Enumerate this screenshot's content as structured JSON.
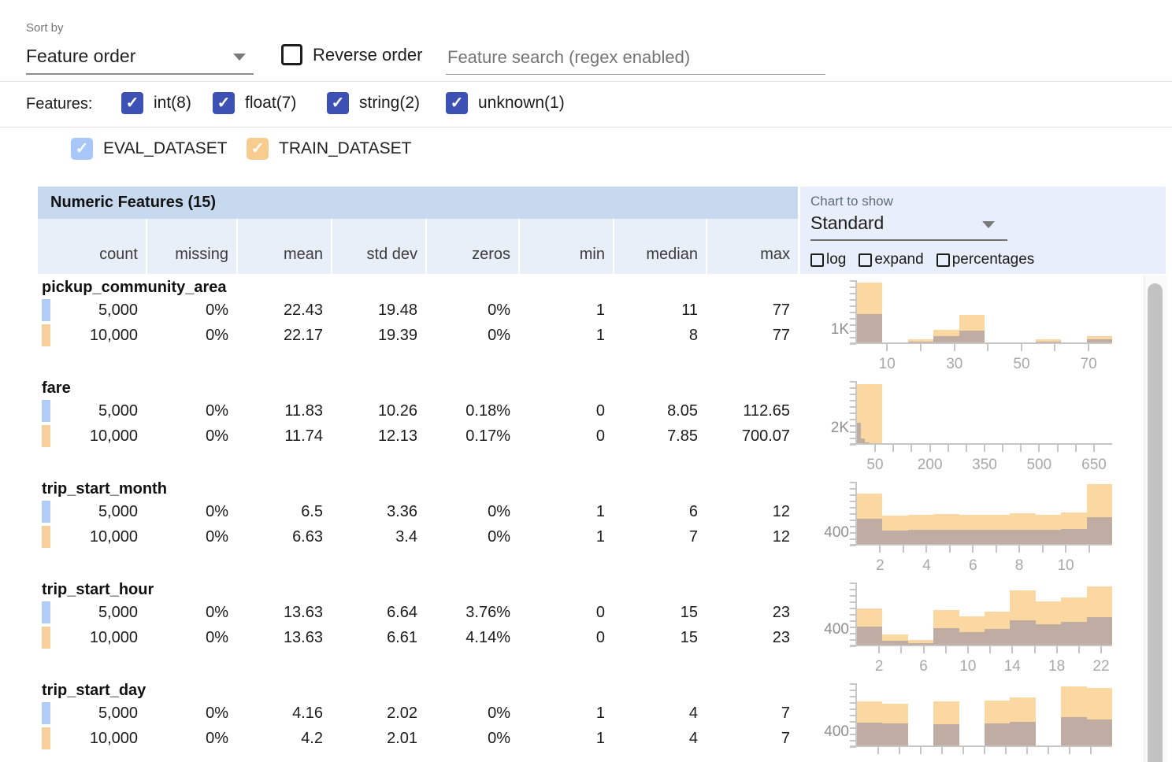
{
  "sort_by": {
    "label": "Sort by",
    "value": "Feature order",
    "reverse_label": "Reverse order"
  },
  "search": {
    "placeholder": "Feature search (regex enabled)"
  },
  "features_filter": {
    "label": "Features:",
    "accent_color": "#3d51b5",
    "items": [
      {
        "label": "int(8)",
        "checked": true
      },
      {
        "label": "float(7)",
        "checked": true
      },
      {
        "label": "string(2)",
        "checked": true
      },
      {
        "label": "unknown(1)",
        "checked": true
      }
    ]
  },
  "datasets": [
    {
      "name": "EVAL_DATASET",
      "checked": true,
      "chip_color": "#a6c7f8",
      "swatch_color": "#b3cdf8"
    },
    {
      "name": "TRAIN_DATASET",
      "checked": true,
      "chip_color": "#f8cb8e",
      "swatch_color": "#f6cf9c"
    }
  ],
  "table": {
    "title": "Numeric Features (15)",
    "columns": [
      "count",
      "missing",
      "mean",
      "std dev",
      "zeros",
      "min",
      "median",
      "max"
    ],
    "features": [
      {
        "name": "pickup_community_area",
        "rows": [
          [
            "5,000",
            "0%",
            "22.43",
            "19.48",
            "0%",
            "1",
            "11",
            "77"
          ],
          [
            "10,000",
            "0%",
            "22.17",
            "19.39",
            "0%",
            "1",
            "8",
            "77"
          ]
        ]
      },
      {
        "name": "fare",
        "rows": [
          [
            "5,000",
            "0%",
            "11.83",
            "10.26",
            "0.18%",
            "0",
            "8.05",
            "112.65"
          ],
          [
            "10,000",
            "0%",
            "11.74",
            "12.13",
            "0.17%",
            "0",
            "7.85",
            "700.07"
          ]
        ]
      },
      {
        "name": "trip_start_month",
        "rows": [
          [
            "5,000",
            "0%",
            "6.5",
            "3.36",
            "0%",
            "1",
            "6",
            "12"
          ],
          [
            "10,000",
            "0%",
            "6.63",
            "3.4",
            "0%",
            "1",
            "7",
            "12"
          ]
        ]
      },
      {
        "name": "trip_start_hour",
        "rows": [
          [
            "5,000",
            "0%",
            "13.63",
            "6.64",
            "3.76%",
            "0",
            "15",
            "23"
          ],
          [
            "10,000",
            "0%",
            "13.63",
            "6.61",
            "4.14%",
            "0",
            "15",
            "23"
          ]
        ]
      },
      {
        "name": "trip_start_day",
        "rows": [
          [
            "5,000",
            "0%",
            "4.16",
            "2.02",
            "0%",
            "1",
            "4",
            "7"
          ],
          [
            "10,000",
            "0%",
            "4.2",
            "2.01",
            "0%",
            "1",
            "4",
            "7"
          ]
        ]
      }
    ]
  },
  "chart_controls": {
    "label": "Chart to show",
    "selected": "Standard",
    "checkboxes": [
      {
        "label": "log",
        "checked": false
      },
      {
        "label": "expand",
        "checked": false
      },
      {
        "label": "percentages",
        "checked": false
      }
    ]
  },
  "chart_data": [
    {
      "type": "bar",
      "feature": "pickup_community_area",
      "ylabel": "1K",
      "ytick_value": 1000,
      "ymax": 4600,
      "xrange": [
        1,
        77
      ],
      "xticks": [
        {
          "label": "10",
          "pos": 0.118
        },
        {
          "label": "30",
          "pos": 0.382
        },
        {
          "label": "50",
          "pos": 0.645
        },
        {
          "label": "70",
          "pos": 0.908
        }
      ],
      "minor_ticks": [
        0.118,
        0.25,
        0.382,
        0.513,
        0.645,
        0.776,
        0.908
      ],
      "series": [
        {
          "name": "TRAIN_DATASET",
          "color": "#fbd7a1",
          "span": 1,
          "values": [
            4400,
            80,
            270,
            1000,
            2070,
            60,
            40,
            270,
            60,
            530
          ]
        },
        {
          "name": "EVAL_DATASET",
          "color": "#bfaca3",
          "span": 1,
          "values": [
            2130,
            40,
            130,
            530,
            930,
            30,
            20,
            130,
            30,
            260
          ]
        }
      ]
    },
    {
      "type": "bar",
      "feature": "fare",
      "ylabel": "2K",
      "ytick_value": 2000,
      "ymax": 8000,
      "xrange": [
        0,
        700
      ],
      "xticks": [
        {
          "label": "50",
          "pos": 0.071
        },
        {
          "label": "200",
          "pos": 0.286
        },
        {
          "label": "350",
          "pos": 0.5
        },
        {
          "label": "500",
          "pos": 0.714
        },
        {
          "label": "650",
          "pos": 0.929
        }
      ],
      "minor_ticks": [
        0.071,
        0.143,
        0.214,
        0.286,
        0.357,
        0.429,
        0.5,
        0.571,
        0.643,
        0.714,
        0.786,
        0.857,
        0.929
      ],
      "series": [
        {
          "name": "TRAIN_DATASET",
          "color": "#fbd7a1",
          "span": 1,
          "values": [
            7650,
            40,
            0,
            0,
            0,
            0,
            0,
            0,
            0,
            0
          ]
        },
        {
          "name": "EVAL_DATASET",
          "color": "#bfaca3",
          "span": 0.161,
          "values": [
            2700,
            700,
            250,
            90,
            40,
            0,
            0,
            0,
            0,
            0
          ]
        }
      ]
    },
    {
      "type": "bar",
      "feature": "trip_start_month",
      "ylabel": "400",
      "ytick_value": 400,
      "ymax": 2150,
      "xrange": [
        1,
        12
      ],
      "xticks": [
        {
          "label": "2",
          "pos": 0.091
        },
        {
          "label": "4",
          "pos": 0.273
        },
        {
          "label": "6",
          "pos": 0.455
        },
        {
          "label": "8",
          "pos": 0.636
        },
        {
          "label": "10",
          "pos": 0.818
        }
      ],
      "minor_ticks": [
        0.091,
        0.182,
        0.273,
        0.364,
        0.455,
        0.545,
        0.636,
        0.727,
        0.818,
        0.909
      ],
      "series": [
        {
          "name": "TRAIN_DATASET",
          "color": "#fbd7a1",
          "span": 1,
          "values": [
            1750,
            990,
            1030,
            1050,
            1020,
            1030,
            1070,
            1010,
            1100,
            2060
          ]
        },
        {
          "name": "EVAL_DATASET",
          "color": "#bfaca3",
          "span": 1,
          "values": [
            890,
            480,
            500,
            510,
            520,
            505,
            510,
            500,
            530,
            950
          ]
        }
      ]
    },
    {
      "type": "bar",
      "feature": "trip_start_hour",
      "ylabel": "400",
      "ytick_value": 400,
      "ymax": 1600,
      "xrange": [
        0,
        23
      ],
      "xticks": [
        {
          "label": "2",
          "pos": 0.087
        },
        {
          "label": "6",
          "pos": 0.261
        },
        {
          "label": "10",
          "pos": 0.435
        },
        {
          "label": "14",
          "pos": 0.609
        },
        {
          "label": "18",
          "pos": 0.783
        },
        {
          "label": "22",
          "pos": 0.957
        }
      ],
      "minor_ticks": [
        0.087,
        0.174,
        0.261,
        0.348,
        0.435,
        0.522,
        0.609,
        0.696,
        0.783,
        0.87,
        0.957
      ],
      "series": [
        {
          "name": "TRAIN_DATASET",
          "color": "#fbd7a1",
          "span": 1,
          "values": [
            940,
            280,
            140,
            895,
            750,
            870,
            1410,
            1130,
            1220,
            1500
          ]
        },
        {
          "name": "EVAL_DATASET",
          "color": "#bfaca3",
          "span": 1,
          "values": [
            490,
            120,
            70,
            450,
            350,
            420,
            635,
            540,
            610,
            730
          ]
        }
      ]
    },
    {
      "type": "bar",
      "feature": "trip_start_day",
      "ylabel": "400",
      "ytick_value": 400,
      "ymax": 1800,
      "xrange": [
        1,
        7
      ],
      "xticks": [],
      "minor_ticks": [
        0.083,
        0.167,
        0.25,
        0.333,
        0.417,
        0.5,
        0.583,
        0.667,
        0.75,
        0.833,
        0.917
      ],
      "series": [
        {
          "name": "TRAIN_DATASET",
          "color": "#fbd7a1",
          "span": 1,
          "values": [
            1275,
            1225,
            0,
            1290,
            0,
            1300,
            1390,
            0,
            1700,
            1675
          ]
        },
        {
          "name": "EVAL_DATASET",
          "color": "#bfaca3",
          "span": 1,
          "values": [
            675,
            650,
            0,
            640,
            0,
            660,
            700,
            0,
            825,
            775
          ]
        }
      ]
    }
  ],
  "colors": {
    "accent_indigo": "#3d51b5",
    "title_bar_bg": "#c6d9ef",
    "colhead_bg": "#e9eff9",
    "chart_panel_bg": "#e8effa",
    "train_bar": "#fbd7a1",
    "overlap_bar": "#bfaca3"
  }
}
